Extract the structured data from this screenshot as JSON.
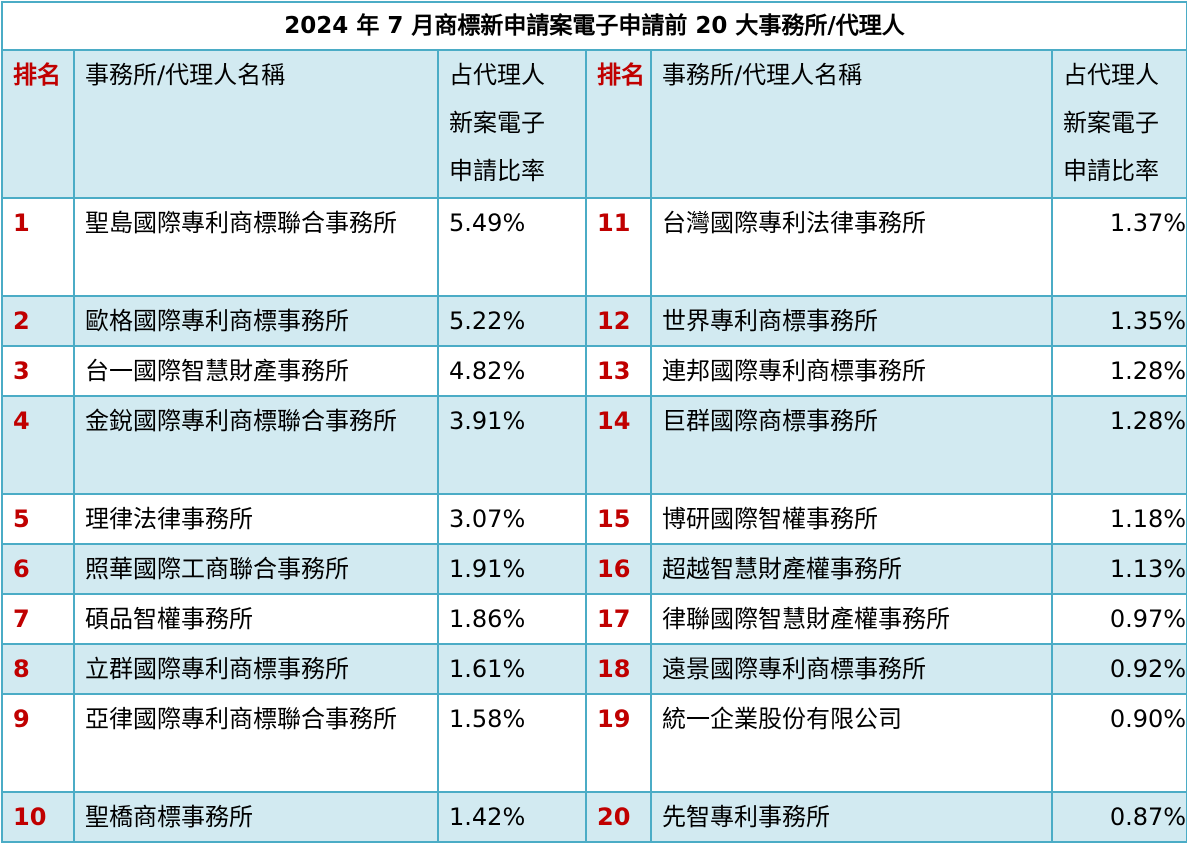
{
  "title": "2024 年 7 月商標新申請案電子申請前 20 大事務所/代理人",
  "header": {
    "rank": "排名",
    "name": "事務所/代理人名稱",
    "ratio_lines": [
      "占代理人",
      "新案電子",
      "申請比率"
    ]
  },
  "rows": [
    {
      "left": {
        "rank": "1",
        "name": "聖島國際專利商標聯合事務所",
        "ratio": "5.49%"
      },
      "right": {
        "rank": "11",
        "name": "台灣國際專利法律事務所",
        "ratio": "1.37%"
      }
    },
    {
      "left": {
        "rank": "2",
        "name": "歐格國際專利商標事務所",
        "ratio": "5.22%"
      },
      "right": {
        "rank": "12",
        "name": "世界專利商標事務所",
        "ratio": "1.35%"
      }
    },
    {
      "left": {
        "rank": "3",
        "name": "台一國際智慧財產事務所",
        "ratio": "4.82%"
      },
      "right": {
        "rank": "13",
        "name": "連邦國際專利商標事務所",
        "ratio": "1.28%"
      }
    },
    {
      "left": {
        "rank": "4",
        "name": "金銳國際專利商標聯合事務所",
        "ratio": "3.91%"
      },
      "right": {
        "rank": "14",
        "name": "巨群國際商標事務所",
        "ratio": "1.28%"
      }
    },
    {
      "left": {
        "rank": "5",
        "name": "理律法律事務所",
        "ratio": "3.07%"
      },
      "right": {
        "rank": "15",
        "name": "博研國際智權事務所",
        "ratio": "1.18%"
      }
    },
    {
      "left": {
        "rank": "6",
        "name": "照華國際工商聯合事務所",
        "ratio": "1.91%"
      },
      "right": {
        "rank": "16",
        "name": "超越智慧財產權事務所",
        "ratio": "1.13%"
      }
    },
    {
      "left": {
        "rank": "7",
        "name": "碩品智權事務所",
        "ratio": "1.86%"
      },
      "right": {
        "rank": "17",
        "name": "律聯國際智慧財產權事務所",
        "ratio": "0.97%"
      }
    },
    {
      "left": {
        "rank": "8",
        "name": "立群國際專利商標事務所",
        "ratio": "1.61%"
      },
      "right": {
        "rank": "18",
        "name": "遠景國際專利商標事務所",
        "ratio": "0.92%"
      }
    },
    {
      "left": {
        "rank": "9",
        "name": "亞律國際專利商標聯合事務所",
        "ratio": "1.58%"
      },
      "right": {
        "rank": "19",
        "name": "統一企業股份有限公司",
        "ratio": "0.90%"
      }
    },
    {
      "left": {
        "rank": "10",
        "name": "聖橋商標事務所",
        "ratio": "1.42%"
      },
      "right": {
        "rank": "20",
        "name": "先智專利事務所",
        "ratio": "0.87%"
      }
    }
  ]
}
